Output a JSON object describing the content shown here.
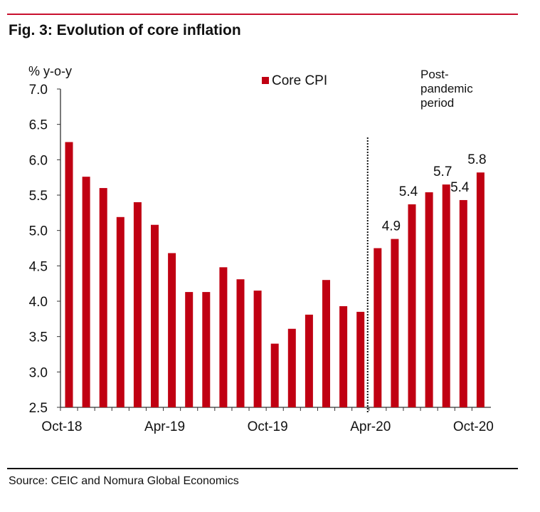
{
  "title": "Fig. 3: Evolution of core inflation",
  "source": "Source: CEIC and Nomura Global Economics",
  "chart_data": {
    "type": "bar",
    "title": "Fig. 3: Evolution of core inflation",
    "ylabel": "% y-o-y",
    "xlabel": "",
    "ylim": [
      2.5,
      7.0
    ],
    "yticks": [
      "2.5",
      "3.0",
      "3.5",
      "4.0",
      "4.5",
      "5.0",
      "5.5",
      "6.0",
      "6.5",
      "7.0"
    ],
    "categories": [
      "Oct-18",
      "Nov-18",
      "Dec-18",
      "Jan-19",
      "Feb-19",
      "Mar-19",
      "Apr-19",
      "May-19",
      "Jun-19",
      "Jul-19",
      "Aug-19",
      "Sep-19",
      "Oct-19",
      "Nov-19",
      "Dec-19",
      "Jan-20",
      "Feb-20",
      "Mar-20",
      "Apr-20",
      "May-20",
      "Jun-20",
      "Jul-20",
      "Aug-20",
      "Sep-20",
      "Oct-20"
    ],
    "xtick_labels": [
      "Oct-18",
      "Apr-19",
      "Oct-19",
      "Apr-20",
      "Oct-20"
    ],
    "series": [
      {
        "name": "Core CPI",
        "color": "#c00012",
        "values": [
          6.25,
          5.76,
          5.6,
          5.19,
          5.4,
          5.08,
          4.68,
          4.13,
          4.13,
          4.48,
          4.31,
          4.15,
          3.4,
          3.61,
          3.81,
          4.3,
          3.93,
          3.85,
          4.75,
          4.88,
          5.37,
          5.54,
          5.65,
          5.43,
          5.82
        ]
      }
    ],
    "data_labels": {
      "May-20": "4.9",
      "Jun-20": "5.4",
      "Aug-20": "5.7",
      "Sep-20": "5.4",
      "Oct-20": "5.8"
    },
    "annotation": {
      "text_lines": [
        "Post-",
        "pandemic",
        "period"
      ],
      "divider_at": "Apr-20",
      "divider_style": "dotted"
    },
    "legend": "top-center",
    "grid": false
  }
}
